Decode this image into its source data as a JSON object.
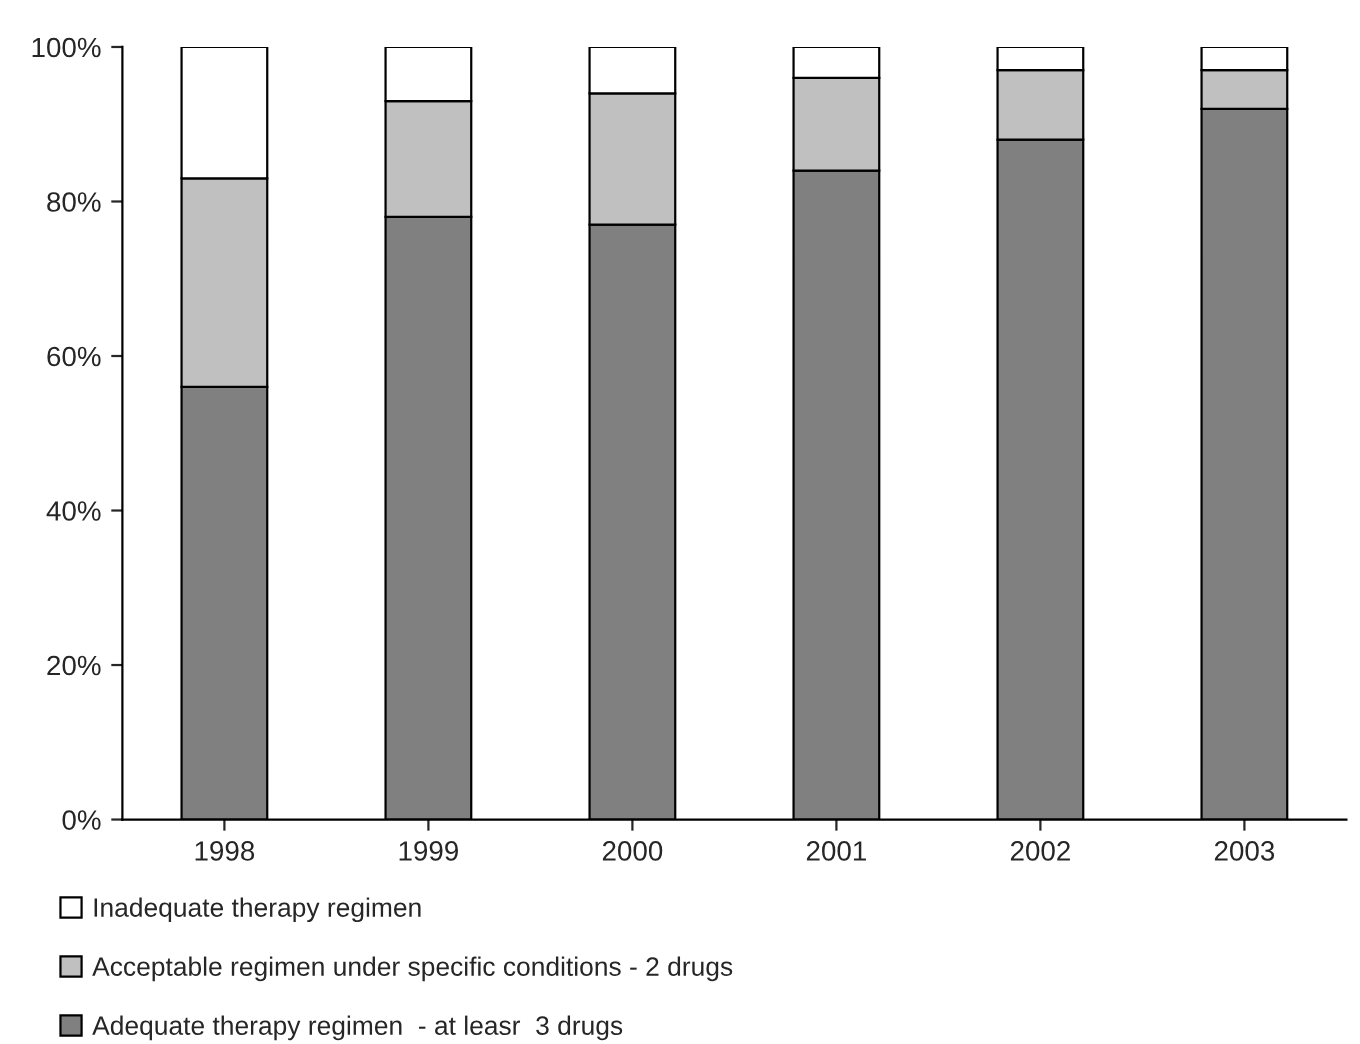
{
  "chart_data": {
    "type": "bar",
    "stacked": true,
    "categories": [
      "1998",
      "1999",
      "2000",
      "2001",
      "2002",
      "2003"
    ],
    "series": [
      {
        "name": "Adequate therapy regimen  - at leasr  3 drugs",
        "color": "#808080",
        "values": [
          56,
          78,
          77,
          84,
          88,
          92
        ]
      },
      {
        "name": "Acceptable regimen under specific conditions - 2 drugs",
        "color": "#c0c0c0",
        "values": [
          27,
          15,
          17,
          12,
          9,
          5
        ]
      },
      {
        "name": "Inadequate therapy regimen",
        "color": "#ffffff",
        "values": [
          17,
          7,
          6,
          4,
          3,
          3
        ]
      }
    ],
    "ylim": [
      0,
      100
    ],
    "yticks": [
      {
        "value": 0,
        "label": "0%"
      },
      {
        "value": 20,
        "label": "20%"
      },
      {
        "value": 40,
        "label": "40%"
      },
      {
        "value": 60,
        "label": "60%"
      },
      {
        "value": 80,
        "label": "80%"
      },
      {
        "value": 100,
        "label": "100%"
      }
    ],
    "grid": false,
    "legend": "bottom"
  }
}
